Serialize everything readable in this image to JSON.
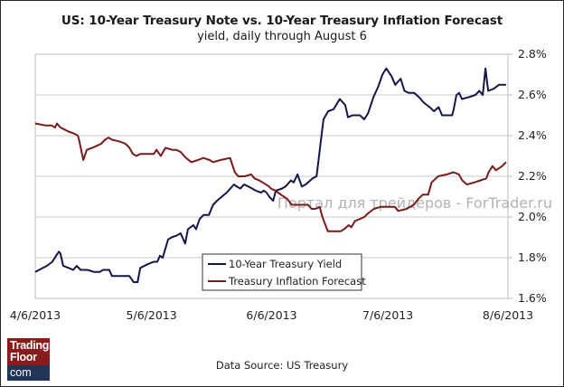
{
  "header": {
    "title": "US: 10-Year Treasury Note vs. 10-Year Treasury Inflation Forecast",
    "subtitle": "yield, daily through August  6"
  },
  "footer": {
    "source": "Data Source: US Treasury",
    "logo": {
      "line1": "Trading",
      "line2": "Floor",
      "line3": "com",
      "top_color": "#8b1a1a",
      "bottom_color": "#1f3656"
    }
  },
  "watermark": "Портал для трейдеров - ForTrader.ru",
  "chart_data": {
    "type": "line",
    "title": "US: 10-Year Treasury Note vs. 10-Year Treasury Inflation Forecast",
    "subtitle": "yield, daily through August  6",
    "xlabel": "",
    "ylabel": "",
    "x_range_days": [
      0,
      122
    ],
    "x_start_date": "4/6/2013",
    "x_ticks": [
      {
        "day": 0,
        "label": "4/6/2013"
      },
      {
        "day": 30,
        "label": "5/6/2013"
      },
      {
        "day": 61,
        "label": "6/6/2013"
      },
      {
        "day": 91,
        "label": "7/6/2013"
      },
      {
        "day": 122,
        "label": "8/6/2013"
      }
    ],
    "ylim": [
      1.6,
      2.8
    ],
    "y_ticks": [
      {
        "value": 1.6,
        "label": "1.6%"
      },
      {
        "value": 1.8,
        "label": "1.8%"
      },
      {
        "value": 2.0,
        "label": "2.0%"
      },
      {
        "value": 2.2,
        "label": "2.2%"
      },
      {
        "value": 2.4,
        "label": "2.4%"
      },
      {
        "value": 2.6,
        "label": "2.6%"
      },
      {
        "value": 2.8,
        "label": "2.8%"
      }
    ],
    "y_axis_side": "right",
    "grid": "horizontal",
    "legend": {
      "position": "bottom-center",
      "entries": [
        "10-Year Treasury Yield",
        "Treasury Inflation Forecast"
      ]
    },
    "series": [
      {
        "name": "10-Year Treasury Yield",
        "color": "#14164a",
        "points": [
          [
            0,
            1.73
          ],
          [
            3,
            1.76
          ],
          [
            4.4,
            1.78
          ],
          [
            5.4,
            1.81
          ],
          [
            6.1,
            1.83
          ],
          [
            6.5,
            1.82
          ],
          [
            7.2,
            1.76
          ],
          [
            8.6,
            1.75
          ],
          [
            9.8,
            1.74
          ],
          [
            10.7,
            1.76
          ],
          [
            11.7,
            1.74
          ],
          [
            12.6,
            1.74
          ],
          [
            13.5,
            1.74
          ],
          [
            15.2,
            1.73
          ],
          [
            16.6,
            1.73
          ],
          [
            17.5,
            1.74
          ],
          [
            18.4,
            1.74
          ],
          [
            19.1,
            1.74
          ],
          [
            19.8,
            1.71
          ],
          [
            21.5,
            1.71
          ],
          [
            24.3,
            1.71
          ],
          [
            25.4,
            1.68
          ],
          [
            26.4,
            1.68
          ],
          [
            27.1,
            1.75
          ],
          [
            29.2,
            1.77
          ],
          [
            30.6,
            1.78
          ],
          [
            31.5,
            1.78
          ],
          [
            32.2,
            1.81
          ],
          [
            32.9,
            1.8
          ],
          [
            34.3,
            1.89
          ],
          [
            35.2,
            1.9
          ],
          [
            36.6,
            1.91
          ],
          [
            37.5,
            1.92
          ],
          [
            38.7,
            1.87
          ],
          [
            39.4,
            1.94
          ],
          [
            40.8,
            1.96
          ],
          [
            41.5,
            1.94
          ],
          [
            42.4,
            1.99
          ],
          [
            43.4,
            2.01
          ],
          [
            44.8,
            2.01
          ],
          [
            45.9,
            2.06
          ],
          [
            46.9,
            2.08
          ],
          [
            49.4,
            2.12
          ],
          [
            51.3,
            2.16
          ],
          [
            52.0,
            2.15
          ],
          [
            52.9,
            2.14
          ],
          [
            53.9,
            2.16
          ],
          [
            55.0,
            2.15
          ],
          [
            56.9,
            2.13
          ],
          [
            58.3,
            2.12
          ],
          [
            59.0,
            2.13
          ],
          [
            59.7,
            2.12
          ],
          [
            60.4,
            2.1
          ],
          [
            61.4,
            2.08
          ],
          [
            62.1,
            2.13
          ],
          [
            63.7,
            2.14
          ],
          [
            64.6,
            2.15
          ],
          [
            66.0,
            2.18
          ],
          [
            66.7,
            2.17
          ],
          [
            67.7,
            2.21
          ],
          [
            68.8,
            2.15
          ],
          [
            69.8,
            2.16
          ],
          [
            71.6,
            2.19
          ],
          [
            72.6,
            2.2
          ],
          [
            73.0,
            2.26
          ],
          [
            74.4,
            2.48
          ],
          [
            75.6,
            2.52
          ],
          [
            77.0,
            2.53
          ],
          [
            78.6,
            2.58
          ],
          [
            80.0,
            2.55
          ],
          [
            80.7,
            2.49
          ],
          [
            81.9,
            2.5
          ],
          [
            83.8,
            2.5
          ],
          [
            84.9,
            2.48
          ],
          [
            85.9,
            2.51
          ],
          [
            87.3,
            2.59
          ],
          [
            88.5,
            2.64
          ],
          [
            89.6,
            2.7
          ],
          [
            90.6,
            2.73
          ],
          [
            92.0,
            2.69
          ],
          [
            92.9,
            2.65
          ],
          [
            94.3,
            2.68
          ],
          [
            95.3,
            2.62
          ],
          [
            96.4,
            2.61
          ],
          [
            97.8,
            2.61
          ],
          [
            99.0,
            2.59
          ],
          [
            100.4,
            2.56
          ],
          [
            101.8,
            2.54
          ],
          [
            102.9,
            2.52
          ],
          [
            104.1,
            2.54
          ],
          [
            105.0,
            2.5
          ],
          [
            106.4,
            2.5
          ],
          [
            107.6,
            2.5
          ],
          [
            108.0,
            2.53
          ],
          [
            108.7,
            2.6
          ],
          [
            109.4,
            2.61
          ],
          [
            110.1,
            2.58
          ],
          [
            112.0,
            2.59
          ],
          [
            113.6,
            2.6
          ],
          [
            114.6,
            2.62
          ],
          [
            115.5,
            2.6
          ],
          [
            116.2,
            2.73
          ],
          [
            116.9,
            2.62
          ],
          [
            118.3,
            2.63
          ],
          [
            119.7,
            2.65
          ],
          [
            120.6,
            2.65
          ],
          [
            121.5,
            2.65
          ]
        ]
      },
      {
        "name": "Treasury Inflation Forecast",
        "color": "#7a1a1a",
        "points": [
          [
            0,
            2.46
          ],
          [
            2.6,
            2.45
          ],
          [
            4.2,
            2.45
          ],
          [
            5.1,
            2.44
          ],
          [
            5.6,
            2.46
          ],
          [
            6.5,
            2.44
          ],
          [
            7.5,
            2.43
          ],
          [
            8.6,
            2.42
          ],
          [
            10.0,
            2.41
          ],
          [
            11.0,
            2.4
          ],
          [
            11.4,
            2.37
          ],
          [
            12.4,
            2.28
          ],
          [
            13.3,
            2.33
          ],
          [
            14.7,
            2.34
          ],
          [
            15.9,
            2.35
          ],
          [
            17.0,
            2.36
          ],
          [
            18.0,
            2.38
          ],
          [
            18.9,
            2.39
          ],
          [
            19.8,
            2.38
          ],
          [
            21.9,
            2.37
          ],
          [
            23.3,
            2.36
          ],
          [
            24.3,
            2.34
          ],
          [
            25.2,
            2.31
          ],
          [
            26.1,
            2.3
          ],
          [
            27.1,
            2.31
          ],
          [
            30.6,
            2.31
          ],
          [
            31.3,
            2.33
          ],
          [
            32.4,
            2.3
          ],
          [
            33.6,
            2.34
          ],
          [
            35.4,
            2.33
          ],
          [
            36.4,
            2.33
          ],
          [
            37.5,
            2.32
          ],
          [
            38.9,
            2.29
          ],
          [
            40.3,
            2.27
          ],
          [
            42.0,
            2.28
          ],
          [
            43.4,
            2.29
          ],
          [
            45.0,
            2.28
          ],
          [
            45.9,
            2.27
          ],
          [
            47.8,
            2.28
          ],
          [
            50.3,
            2.29
          ],
          [
            51.5,
            2.22
          ],
          [
            52.4,
            2.2
          ],
          [
            54.1,
            2.2
          ],
          [
            55.7,
            2.21
          ],
          [
            56.6,
            2.19
          ],
          [
            57.8,
            2.18
          ],
          [
            58.7,
            2.17
          ],
          [
            60.4,
            2.15
          ],
          [
            60.8,
            2.14
          ],
          [
            62.0,
            2.13
          ],
          [
            63.4,
            2.11
          ],
          [
            65.0,
            2.09
          ],
          [
            66.2,
            2.06
          ],
          [
            67.8,
            2.06
          ],
          [
            69.0,
            2.06
          ],
          [
            70.4,
            2.06
          ],
          [
            71.3,
            2.04
          ],
          [
            72.3,
            2.04
          ],
          [
            73.4,
            2.05
          ],
          [
            74.1,
            2.0
          ],
          [
            75.5,
            1.93
          ],
          [
            77.1,
            1.93
          ],
          [
            78.8,
            1.93
          ],
          [
            79.7,
            1.94
          ],
          [
            80.9,
            1.96
          ],
          [
            81.6,
            1.95
          ],
          [
            82.5,
            1.98
          ],
          [
            83.7,
            1.99
          ],
          [
            84.9,
            2.0
          ],
          [
            86.0,
            2.02
          ],
          [
            87.4,
            2.04
          ],
          [
            89.1,
            2.05
          ],
          [
            90.7,
            2.05
          ],
          [
            91.9,
            2.05
          ],
          [
            92.8,
            2.05
          ],
          [
            93.7,
            2.03
          ],
          [
            95.8,
            2.04
          ],
          [
            97.7,
            2.06
          ],
          [
            98.9,
            2.09
          ],
          [
            100.0,
            2.11
          ],
          [
            101.4,
            2.11
          ],
          [
            102.3,
            2.17
          ],
          [
            104.0,
            2.2
          ],
          [
            106.3,
            2.21
          ],
          [
            107.9,
            2.22
          ],
          [
            109.3,
            2.21
          ],
          [
            110.2,
            2.18
          ],
          [
            111.4,
            2.16
          ],
          [
            113.3,
            2.17
          ],
          [
            114.9,
            2.18
          ],
          [
            116.4,
            2.19
          ],
          [
            117.0,
            2.22
          ],
          [
            118.0,
            2.25
          ],
          [
            118.9,
            2.23
          ],
          [
            120.5,
            2.25
          ],
          [
            121.5,
            2.27
          ]
        ]
      }
    ]
  }
}
